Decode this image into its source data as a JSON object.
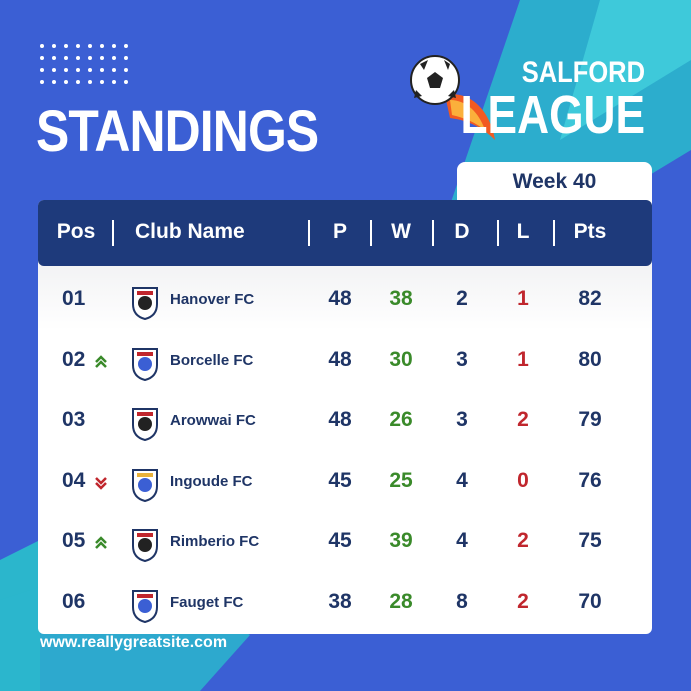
{
  "header": {
    "title": "STANDINGS",
    "league_top": "SALFORD",
    "league_bottom": "LEAGUE",
    "week": "Week 40"
  },
  "table": {
    "columns": [
      "Pos",
      "Club Name",
      "P",
      "W",
      "D",
      "L",
      "Pts"
    ],
    "rows": [
      {
        "pos": "01",
        "club": "Hanover FC",
        "p": 48,
        "w": 38,
        "d": 2,
        "l": 1,
        "pts": 82
      },
      {
        "pos": "02",
        "club": "Borcelle FC",
        "p": 48,
        "w": 30,
        "d": 3,
        "l": 1,
        "pts": 80,
        "trend": "up"
      },
      {
        "pos": "03",
        "club": "Arowwai FC",
        "p": 48,
        "w": 26,
        "d": 3,
        "l": 2,
        "pts": 79
      },
      {
        "pos": "04",
        "club": "Ingoude FC",
        "p": 45,
        "w": 25,
        "d": 4,
        "l": 0,
        "pts": 76,
        "trend": "down"
      },
      {
        "pos": "05",
        "club": "Rimberio FC",
        "p": 45,
        "w": 39,
        "d": 4,
        "l": 2,
        "pts": 75,
        "trend": "up"
      },
      {
        "pos": "06",
        "club": "Fauget FC",
        "p": 38,
        "w": 28,
        "d": 8,
        "l": 2,
        "pts": 70
      }
    ]
  },
  "footer": {
    "website": "www.reallygreatsite.com"
  }
}
